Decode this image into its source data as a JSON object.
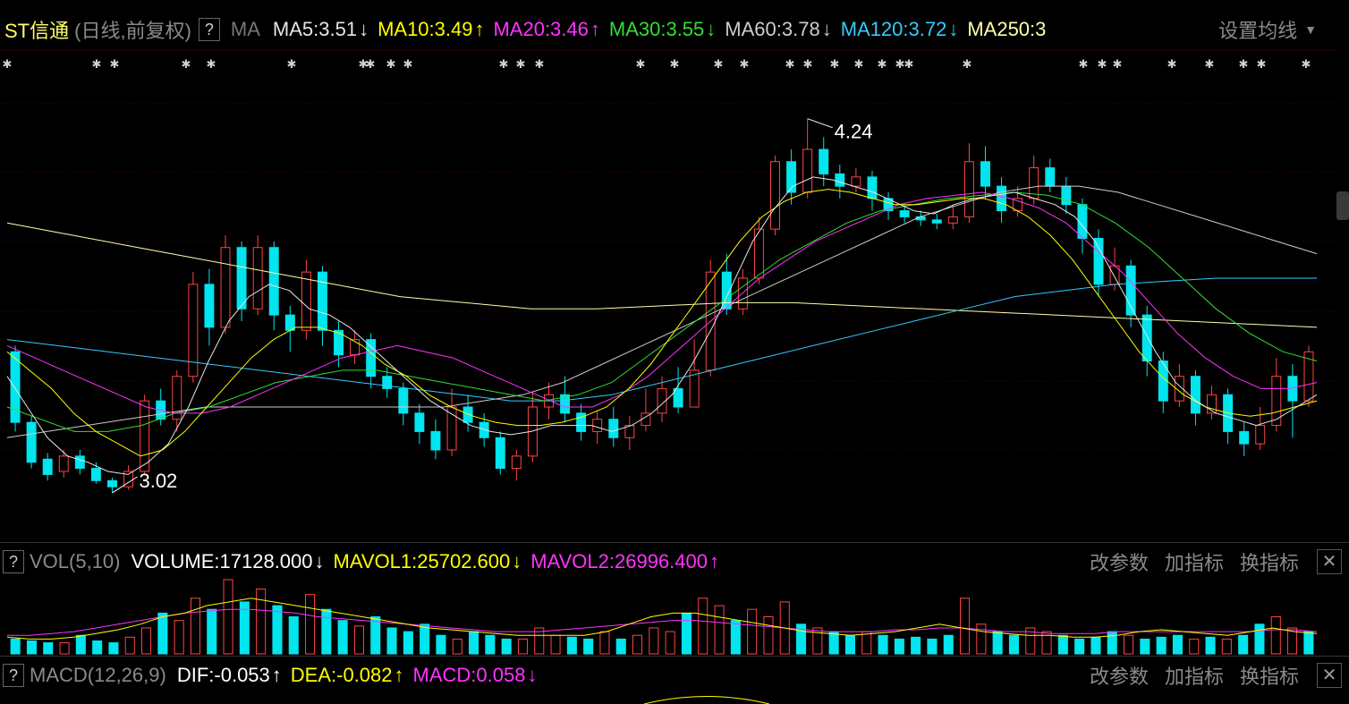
{
  "header": {
    "stock_name": "ST信通",
    "period_label": "(日线,前复权)",
    "help_label": "?",
    "ma_label": "MA",
    "settings_label": "设置均线",
    "ma_items": [
      {
        "label": "MA5:3.51",
        "arrow": "↓",
        "color": "#e6e6e6"
      },
      {
        "label": "MA10:3.49",
        "arrow": "↑",
        "color": "#ffff00"
      },
      {
        "label": "MA20:3.46",
        "arrow": "↑",
        "color": "#ff33ff"
      },
      {
        "label": "MA30:3.55",
        "arrow": "↓",
        "color": "#33dd33"
      },
      {
        "label": "MA60:3.78",
        "arrow": "↓",
        "color": "#cccccc"
      },
      {
        "label": "MA120:3.72",
        "arrow": "↓",
        "color": "#33ccff"
      },
      {
        "label": "MA250:3",
        "arrow": "",
        "color": "#ffffaa"
      }
    ]
  },
  "volume_panel": {
    "help_label": "?",
    "title": "VOL(5,10)",
    "items": [
      {
        "label": "VOLUME:17128.000",
        "arrow": "↓",
        "color": "#ffffff"
      },
      {
        "label": "MAVOL1:25702.600",
        "arrow": "↓",
        "color": "#ffff00"
      },
      {
        "label": "MAVOL2:26996.400",
        "arrow": "↑",
        "color": "#ff33ff"
      }
    ],
    "buttons": [
      "改参数",
      "加指标",
      "换指标"
    ],
    "close_label": "✕"
  },
  "macd_panel": {
    "help_label": "?",
    "title": "MACD(12,26,9)",
    "items": [
      {
        "label": "DIF:-0.053",
        "arrow": "↑",
        "color": "#ffffff"
      },
      {
        "label": "DEA:-0.082",
        "arrow": "↑",
        "color": "#ffff00"
      },
      {
        "label": "MACD:0.058",
        "arrow": "↓",
        "color": "#ff33ff"
      }
    ],
    "buttons": [
      "改参数",
      "加指标",
      "换指标"
    ],
    "close_label": "✕"
  },
  "colors": {
    "up": "#ff4444",
    "down": "#00e5ee",
    "grid": "#3a0000",
    "ma5": "#e6e6e6",
    "ma10": "#ffff00",
    "ma20": "#ff33ff",
    "ma30": "#33dd33",
    "ma60": "#cccccc",
    "ma120": "#33ccff",
    "ma250": "#ffffaa"
  },
  "chart_data": {
    "type": "candlestick",
    "ylim": [
      2.95,
      4.35
    ],
    "high_marker": "4.24",
    "low_marker": "3.02",
    "high_value": 4.24,
    "low_value": 3.02,
    "candles": [
      [
        3.48,
        3.25,
        3.5,
        3.22
      ],
      [
        3.25,
        3.12,
        3.27,
        3.1
      ],
      [
        3.13,
        3.08,
        3.15,
        3.06
      ],
      [
        3.09,
        3.14,
        3.16,
        3.07
      ],
      [
        3.14,
        3.1,
        3.16,
        3.08
      ],
      [
        3.1,
        3.06,
        3.12,
        3.05
      ],
      [
        3.06,
        3.04,
        3.07,
        3.02
      ],
      [
        3.04,
        3.09,
        3.11,
        3.03
      ],
      [
        3.09,
        3.32,
        3.34,
        3.08
      ],
      [
        3.32,
        3.26,
        3.36,
        3.24
      ],
      [
        3.26,
        3.4,
        3.42,
        3.22
      ],
      [
        3.4,
        3.7,
        3.74,
        3.38
      ],
      [
        3.7,
        3.56,
        3.75,
        3.5
      ],
      [
        3.56,
        3.82,
        3.86,
        3.54
      ],
      [
        3.82,
        3.62,
        3.84,
        3.58
      ],
      [
        3.62,
        3.82,
        3.86,
        3.6
      ],
      [
        3.82,
        3.6,
        3.84,
        3.55
      ],
      [
        3.6,
        3.55,
        3.63,
        3.48
      ],
      [
        3.55,
        3.74,
        3.78,
        3.52
      ],
      [
        3.74,
        3.55,
        3.76,
        3.5
      ],
      [
        3.55,
        3.47,
        3.58,
        3.43
      ],
      [
        3.47,
        3.52,
        3.55,
        3.44
      ],
      [
        3.52,
        3.4,
        3.54,
        3.36
      ],
      [
        3.4,
        3.36,
        3.43,
        3.33
      ],
      [
        3.36,
        3.28,
        3.38,
        3.24
      ],
      [
        3.28,
        3.22,
        3.31,
        3.18
      ],
      [
        3.22,
        3.16,
        3.26,
        3.13
      ],
      [
        3.16,
        3.3,
        3.36,
        3.14
      ],
      [
        3.3,
        3.25,
        3.34,
        3.22
      ],
      [
        3.25,
        3.2,
        3.28,
        3.17
      ],
      [
        3.2,
        3.1,
        3.22,
        3.08
      ],
      [
        3.1,
        3.14,
        3.16,
        3.06
      ],
      [
        3.14,
        3.3,
        3.35,
        3.12
      ],
      [
        3.3,
        3.34,
        3.38,
        3.26
      ],
      [
        3.34,
        3.28,
        3.4,
        3.25
      ],
      [
        3.28,
        3.22,
        3.31,
        3.19
      ],
      [
        3.22,
        3.26,
        3.29,
        3.18
      ],
      [
        3.26,
        3.2,
        3.3,
        3.17
      ],
      [
        3.2,
        3.24,
        3.27,
        3.16
      ],
      [
        3.24,
        3.28,
        3.36,
        3.22
      ],
      [
        3.28,
        3.36,
        3.4,
        3.25
      ],
      [
        3.36,
        3.3,
        3.43,
        3.28
      ],
      [
        3.3,
        3.42,
        3.52,
        3.3
      ],
      [
        3.42,
        3.74,
        3.78,
        3.4
      ],
      [
        3.74,
        3.62,
        3.8,
        3.6
      ],
      [
        3.62,
        3.72,
        3.75,
        3.6
      ],
      [
        3.72,
        3.88,
        3.92,
        3.7
      ],
      [
        3.88,
        4.1,
        4.12,
        3.86
      ],
      [
        4.1,
        4.0,
        4.14,
        3.96
      ],
      [
        4.0,
        4.14,
        4.24,
        3.98
      ],
      [
        4.14,
        4.06,
        4.18,
        4.02
      ],
      [
        4.06,
        4.02,
        4.09,
        3.98
      ],
      [
        4.02,
        4.05,
        4.08,
        4.0
      ],
      [
        4.05,
        3.98,
        4.07,
        3.94
      ],
      [
        3.98,
        3.94,
        4.0,
        3.91
      ],
      [
        3.94,
        3.92,
        3.96,
        3.9
      ],
      [
        3.92,
        3.91,
        3.94,
        3.89
      ],
      [
        3.91,
        3.9,
        3.93,
        3.88
      ],
      [
        3.9,
        3.92,
        3.96,
        3.88
      ],
      [
        3.92,
        4.1,
        4.16,
        3.9
      ],
      [
        4.1,
        4.02,
        4.15,
        3.98
      ],
      [
        4.02,
        3.94,
        4.05,
        3.9
      ],
      [
        3.94,
        3.98,
        4.02,
        3.92
      ],
      [
        3.98,
        4.08,
        4.12,
        3.96
      ],
      [
        4.08,
        4.02,
        4.11,
        4.0
      ],
      [
        4.02,
        3.96,
        4.05,
        3.93
      ],
      [
        3.96,
        3.85,
        3.98,
        3.8
      ],
      [
        3.85,
        3.7,
        3.88,
        3.66
      ],
      [
        3.7,
        3.76,
        3.82,
        3.68
      ],
      [
        3.76,
        3.6,
        3.78,
        3.56
      ],
      [
        3.6,
        3.45,
        3.63,
        3.4
      ],
      [
        3.45,
        3.32,
        3.48,
        3.28
      ],
      [
        3.32,
        3.4,
        3.44,
        3.3
      ],
      [
        3.4,
        3.28,
        3.42,
        3.24
      ],
      [
        3.28,
        3.34,
        3.37,
        3.26
      ],
      [
        3.34,
        3.22,
        3.36,
        3.18
      ],
      [
        3.22,
        3.18,
        3.25,
        3.14
      ],
      [
        3.18,
        3.24,
        3.3,
        3.16
      ],
      [
        3.24,
        3.4,
        3.46,
        3.22
      ],
      [
        3.4,
        3.32,
        3.44,
        3.2
      ],
      [
        3.32,
        3.48,
        3.5,
        3.3
      ]
    ],
    "ma5": [
      3.4,
      3.3,
      3.2,
      3.14,
      3.12,
      3.09,
      3.08,
      3.12,
      3.18,
      3.3,
      3.45,
      3.58,
      3.66,
      3.7,
      3.68,
      3.62,
      3.6,
      3.56,
      3.5,
      3.44,
      3.38,
      3.32,
      3.28,
      3.24,
      3.22,
      3.21,
      3.22,
      3.24,
      3.24,
      3.24,
      3.22,
      3.24,
      3.28,
      3.34,
      3.44,
      3.56,
      3.7,
      3.84,
      3.94,
      4.02,
      4.05,
      4.04,
      4.02,
      4.0,
      3.97,
      3.94,
      3.93,
      3.96,
      3.98,
      3.99,
      4.0,
      3.98,
      3.96,
      3.92,
      3.84,
      3.72,
      3.6,
      3.48,
      3.38,
      3.32,
      3.28,
      3.26,
      3.24,
      3.26,
      3.3,
      3.34
    ],
    "ma10": [
      3.48,
      3.42,
      3.36,
      3.28,
      3.22,
      3.18,
      3.14,
      3.16,
      3.22,
      3.3,
      3.38,
      3.46,
      3.52,
      3.56,
      3.56,
      3.54,
      3.5,
      3.44,
      3.4,
      3.34,
      3.3,
      3.27,
      3.25,
      3.24,
      3.24,
      3.25,
      3.27,
      3.3,
      3.36,
      3.44,
      3.54,
      3.64,
      3.74,
      3.84,
      3.92,
      3.97,
      4.0,
      4.01,
      4.0,
      3.98,
      3.96,
      3.96,
      3.97,
      3.98,
      3.98,
      3.96,
      3.92,
      3.86,
      3.78,
      3.68,
      3.58,
      3.48,
      3.4,
      3.34,
      3.3,
      3.28,
      3.27,
      3.28,
      3.3,
      3.32
    ],
    "ma20": [
      3.5,
      3.46,
      3.42,
      3.38,
      3.34,
      3.3,
      3.28,
      3.28,
      3.3,
      3.34,
      3.38,
      3.42,
      3.46,
      3.48,
      3.5,
      3.48,
      3.46,
      3.42,
      3.38,
      3.34,
      3.3,
      3.3,
      3.34,
      3.4,
      3.48,
      3.56,
      3.64,
      3.72,
      3.78,
      3.84,
      3.88,
      3.92,
      3.96,
      3.98,
      3.99,
      4.0,
      3.98,
      3.95,
      3.9,
      3.82,
      3.74,
      3.64,
      3.54,
      3.46,
      3.4,
      3.36,
      3.36,
      3.38
    ],
    "ma30": [
      3.3,
      3.26,
      3.22,
      3.22,
      3.24,
      3.28,
      3.3,
      3.34,
      3.38,
      3.4,
      3.42,
      3.42,
      3.4,
      3.38,
      3.36,
      3.34,
      3.32,
      3.34,
      3.38,
      3.46,
      3.54,
      3.62,
      3.7,
      3.78,
      3.84,
      3.9,
      3.94,
      3.96,
      3.98,
      3.99,
      4.0,
      3.99,
      3.96,
      3.9,
      3.82,
      3.72,
      3.62,
      3.54,
      3.48,
      3.45
    ],
    "ma60": [
      3.2,
      3.22,
      3.24,
      3.26,
      3.28,
      3.3,
      3.3,
      3.3,
      3.3,
      3.3,
      3.3,
      3.3,
      3.32,
      3.34,
      3.38,
      3.44,
      3.5,
      3.56,
      3.62,
      3.68,
      3.74,
      3.8,
      3.86,
      3.92,
      3.96,
      4.0,
      4.02,
      4.02,
      4.0,
      3.96,
      3.92,
      3.88,
      3.84,
      3.8
    ],
    "ma120": [
      3.52,
      3.5,
      3.48,
      3.46,
      3.44,
      3.42,
      3.4,
      3.38,
      3.36,
      3.34,
      3.32,
      3.32,
      3.34,
      3.38,
      3.42,
      3.46,
      3.5,
      3.54,
      3.58,
      3.62,
      3.66,
      3.68,
      3.7,
      3.71,
      3.72,
      3.72,
      3.72
    ],
    "ma250": [
      3.9,
      3.86,
      3.82,
      3.78,
      3.74,
      3.7,
      3.66,
      3.64,
      3.62,
      3.62,
      3.63,
      3.64,
      3.64,
      3.63,
      3.62,
      3.61,
      3.6,
      3.59,
      3.58,
      3.57,
      3.56
    ],
    "volume": [
      8,
      7,
      6,
      6,
      10,
      7,
      6,
      9,
      14,
      22,
      18,
      30,
      24,
      40,
      28,
      35,
      26,
      20,
      32,
      24,
      18,
      15,
      20,
      14,
      12,
      16,
      10,
      8,
      12,
      10,
      8,
      8,
      14,
      10,
      9,
      8,
      12,
      8,
      10,
      14,
      12,
      22,
      30,
      26,
      18,
      24,
      20,
      28,
      16,
      14,
      12,
      10,
      12,
      10,
      8,
      9,
      8,
      10,
      30,
      16,
      12,
      10,
      14,
      12,
      10,
      8,
      9,
      12,
      10,
      8,
      9,
      10,
      8,
      9,
      8,
      10,
      16,
      20,
      14,
      12
    ],
    "mavol1": [
      9,
      8,
      8,
      9,
      11,
      13,
      16,
      20,
      22,
      26,
      28,
      30,
      28,
      26,
      24,
      22,
      20,
      18,
      16,
      14,
      13,
      12,
      11,
      10,
      10,
      10,
      10,
      12,
      16,
      20,
      22,
      22,
      20,
      18,
      16,
      14,
      12,
      11,
      10,
      11,
      12,
      14,
      16,
      14,
      12,
      11,
      10,
      10,
      9,
      9,
      10,
      12,
      13,
      12,
      11,
      10,
      12,
      14,
      12,
      11
    ],
    "mavol2": [
      10,
      10,
      11,
      12,
      14,
      16,
      18,
      20,
      22,
      23,
      24,
      24,
      23,
      22,
      20,
      19,
      18,
      17,
      16,
      15,
      14,
      13,
      12,
      12,
      12,
      13,
      14,
      15,
      16,
      17,
      18,
      18,
      17,
      16,
      15,
      14,
      13,
      12,
      12,
      12,
      13,
      13,
      14,
      14,
      13,
      12,
      12,
      11,
      11,
      11,
      12,
      12,
      12,
      12,
      12,
      12,
      12,
      13,
      13,
      12
    ]
  }
}
